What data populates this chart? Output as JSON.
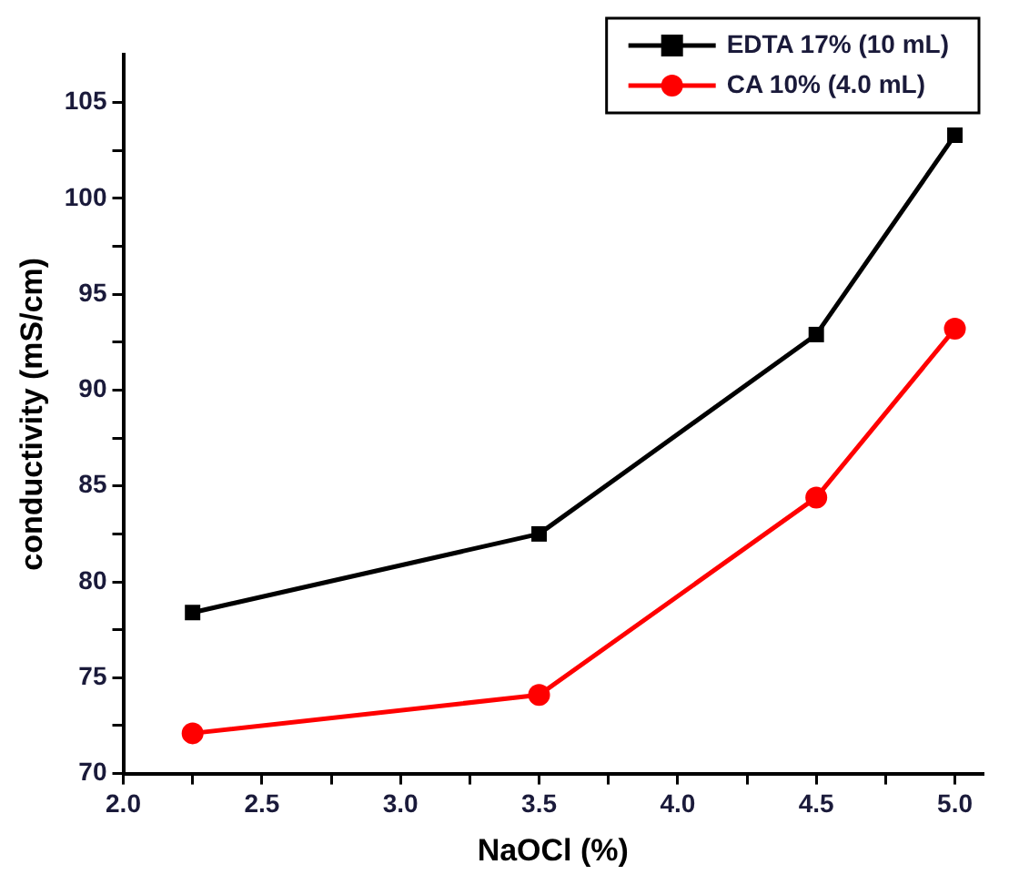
{
  "chart_data": {
    "type": "line",
    "xlabel": "NaOCl (%)",
    "ylabel": "conductivity (mS/cm)",
    "x": [
      2.25,
      3.5,
      4.5,
      5.0
    ],
    "series": [
      {
        "name": "EDTA 17% (10 mL)",
        "color": "#000000",
        "marker": "square",
        "values": [
          78.4,
          82.5,
          92.9,
          103.3
        ]
      },
      {
        "name": "CA 10% (4.0 mL)",
        "color": "#ff0000",
        "marker": "circle",
        "values": [
          72.1,
          74.1,
          84.4,
          93.2
        ]
      }
    ],
    "xlim": [
      2.0,
      5.1
    ],
    "xticks": [
      {
        "value": 2,
        "label": "2.0"
      },
      {
        "value": 2.25,
        "label": null
      },
      2.5,
      {
        "value": 2.75,
        "label": null
      },
      {
        "value": 3,
        "label": "3.0"
      },
      {
        "value": 3.25,
        "label": null
      },
      3.5,
      {
        "value": 3.75,
        "label": null
      },
      {
        "value": 4,
        "label": "4.0"
      },
      {
        "value": 4.25,
        "label": null
      },
      4.5,
      {
        "value": 4.75,
        "label": null
      },
      {
        "value": 5,
        "label": "5.0"
      }
    ],
    "ylim": [
      70,
      107.5
    ],
    "yticks": [
      70,
      {
        "value": 72.5,
        "label": null
      },
      75,
      {
        "value": 77.5,
        "label": null
      },
      80,
      {
        "value": 82.5,
        "label": null
      },
      85,
      {
        "value": 87.5,
        "label": null
      },
      90,
      {
        "value": 92.5,
        "label": null
      },
      95,
      {
        "value": 97.5,
        "label": null
      },
      100,
      {
        "value": 102.5,
        "label": null
      },
      105
    ],
    "grid": false,
    "legend": "top right",
    "line_style": "solid"
  }
}
